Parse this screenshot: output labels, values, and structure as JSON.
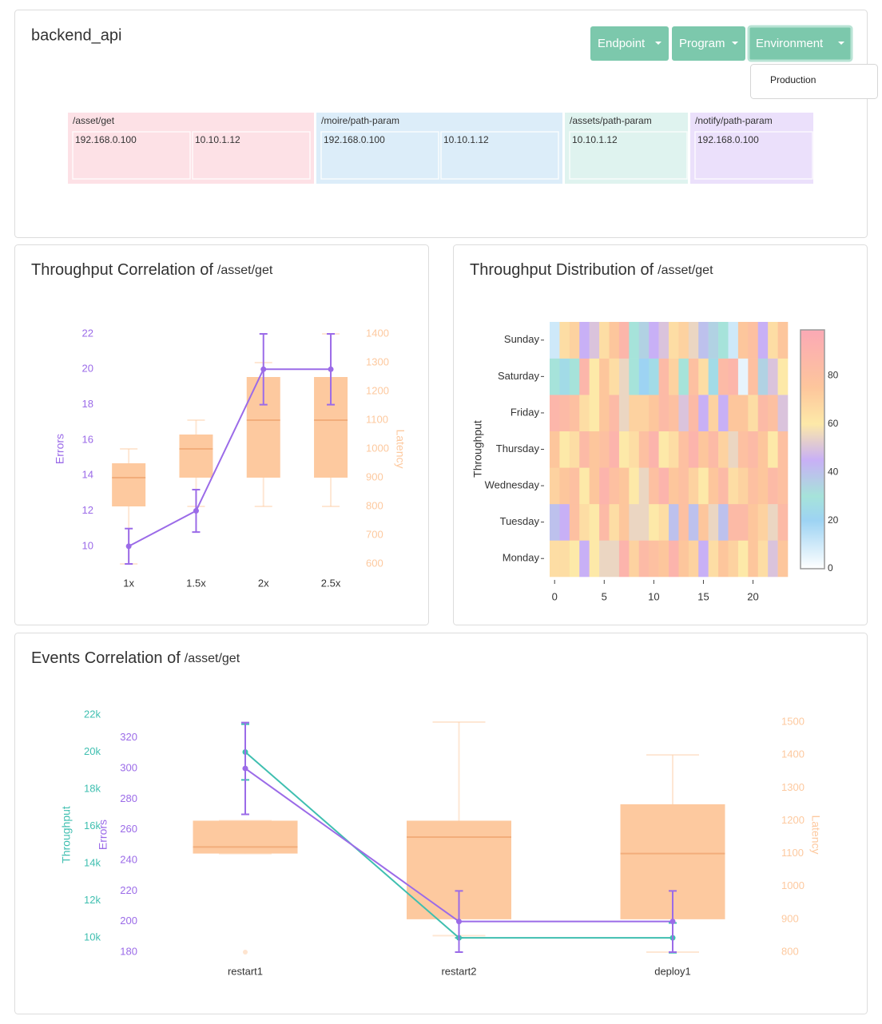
{
  "header": {
    "title": "backend_api",
    "buttons": [
      "Endpoint",
      "Program",
      "Environment"
    ],
    "dropdown": [
      "Production"
    ]
  },
  "treemap": {
    "groups": [
      {
        "label": "/asset/get",
        "color": "#fde1e6",
        "items": [
          "192.168.0.100",
          "10.10.1.12"
        ]
      },
      {
        "label": "/moire/path-param",
        "color": "#dcedf9",
        "items": [
          "192.168.0.100",
          "10.10.1.12"
        ]
      },
      {
        "label": "/assets/path-param",
        "color": "#dff3ef",
        "items": [
          "10.10.1.12"
        ]
      },
      {
        "label": "/notify/path-param",
        "color": "#ebe0fb",
        "items": [
          "192.168.0.100"
        ]
      }
    ]
  },
  "chart_data": [
    {
      "type": "box-line",
      "title": "Throughput Correlation of",
      "subject": "/asset/get",
      "categories": [
        "1x",
        "1.5x",
        "2x",
        "2.5x"
      ],
      "series": [
        {
          "kind": "box",
          "axis": "y2",
          "color": "#fdc99f",
          "min": [
            600,
            800,
            800,
            800
          ],
          "q1": [
            800,
            900,
            900,
            900
          ],
          "median": [
            900,
            1000,
            1100,
            1100
          ],
          "q3": [
            950,
            1050,
            1250,
            1250
          ],
          "max": [
            1000,
            1100,
            1300,
            1400
          ]
        },
        {
          "kind": "line",
          "axis": "y",
          "color": "#9b6be8",
          "values": [
            10,
            12,
            20,
            20
          ],
          "error": [
            1,
            1.2,
            2,
            2
          ]
        }
      ],
      "ylabel": "Errors",
      "ylim": [
        9,
        22
      ],
      "yticks": [
        10,
        12,
        14,
        16,
        18,
        20,
        22
      ],
      "y2label": "Latency",
      "y2lim": [
        600,
        1400
      ],
      "y2ticks": [
        600,
        700,
        800,
        900,
        1000,
        1100,
        1200,
        1300,
        1400
      ]
    },
    {
      "type": "heatmap",
      "title": "Throughput Distribution of",
      "subject": "/asset/get",
      "ylabel": "Throughput",
      "x": [
        0,
        1,
        2,
        3,
        4,
        5,
        6,
        7,
        8,
        9,
        10,
        11,
        12,
        13,
        14,
        15,
        16,
        17,
        18,
        19,
        20,
        21,
        22,
        23
      ],
      "y": [
        "Monday",
        "Tuesday",
        "Wednesday",
        "Thursday",
        "Friday",
        "Saturday",
        "Sunday"
      ],
      "z": [
        [
          65,
          65,
          60,
          45,
          60,
          55,
          55,
          90,
          70,
          85,
          80,
          75,
          90,
          75,
          70,
          45,
          65,
          75,
          70,
          60,
          75,
          65,
          50,
          75
        ],
        [
          40,
          45,
          80,
          65,
          60,
          85,
          65,
          75,
          55,
          55,
          60,
          65,
          40,
          80,
          40,
          75,
          55,
          40,
          85,
          85,
          75,
          70,
          55,
          85
        ],
        [
          70,
          75,
          80,
          60,
          75,
          90,
          80,
          75,
          60,
          55,
          80,
          90,
          75,
          80,
          70,
          60,
          75,
          85,
          65,
          70,
          80,
          75,
          85,
          80
        ],
        [
          75,
          60,
          65,
          85,
          75,
          80,
          90,
          60,
          65,
          80,
          90,
          60,
          65,
          80,
          90,
          75,
          85,
          70,
          55,
          80,
          85,
          75,
          60,
          80
        ],
        [
          88,
          85,
          80,
          65,
          60,
          75,
          85,
          55,
          70,
          70,
          75,
          85,
          80,
          50,
          85,
          45,
          70,
          45,
          75,
          75,
          65,
          85,
          80,
          50
        ],
        [
          30,
          25,
          30,
          88,
          60,
          75,
          65,
          55,
          30,
          20,
          25,
          85,
          70,
          30,
          80,
          65,
          25,
          85,
          88,
          5,
          80,
          35,
          50,
          60
        ],
        [
          10,
          65,
          70,
          45,
          50,
          65,
          75,
          88,
          30,
          35,
          45,
          50,
          65,
          70,
          55,
          40,
          35,
          30,
          10,
          75,
          80,
          45,
          65,
          75
        ]
      ],
      "xlim": [
        -0.5,
        23.5
      ],
      "xticks": [
        0,
        5,
        10,
        15,
        20
      ],
      "zlim": [
        0,
        99
      ],
      "zticks": [
        0,
        20,
        40,
        60,
        80
      ],
      "colorscale": [
        [
          0,
          "#ffffff"
        ],
        [
          20,
          "#9dd3f3"
        ],
        [
          30,
          "#a6e3da"
        ],
        [
          45,
          "#c8b0f6"
        ],
        [
          60,
          "#fde9a8"
        ],
        [
          75,
          "#fdc69c"
        ],
        [
          99,
          "#fba9b5"
        ]
      ]
    },
    {
      "type": "box-line",
      "title": "Events Correlation of",
      "subject": "/asset/get",
      "categories": [
        "restart1",
        "restart2",
        "deploy1"
      ],
      "series": [
        {
          "kind": "box",
          "axis": "y2",
          "color": "#fdc99f",
          "min": [
            1100,
            850,
            800
          ],
          "q1": [
            1100,
            900,
            900
          ],
          "median": [
            1120,
            1150,
            1100
          ],
          "q3": [
            1200,
            1200,
            1250
          ],
          "max": [
            1200,
            1500,
            1400
          ],
          "outliers": [
            [
              800
            ],
            [],
            []
          ]
        },
        {
          "kind": "line",
          "axis": "y3",
          "color": "#3fbfb0",
          "values": [
            20000,
            10000,
            10000
          ],
          "error": [
            1500,
            0,
            800
          ]
        },
        {
          "kind": "line",
          "axis": "y",
          "color": "#9b6be8",
          "values": [
            300,
            200,
            200
          ],
          "error": [
            30,
            20,
            20
          ]
        }
      ],
      "ylabel": "Errors",
      "ylim": [
        180,
        335
      ],
      "yticks": [
        180,
        200,
        220,
        240,
        260,
        280,
        300,
        320
      ],
      "y2label": "Latency",
      "y2lim": [
        800,
        1522
      ],
      "y2ticks": [
        800,
        900,
        1000,
        1100,
        1200,
        1300,
        1400,
        1500
      ],
      "y3label": "Throughput",
      "y3lim": [
        9230,
        22000
      ],
      "y3ticks": [
        {
          "value": 10000,
          "label": "10k"
        },
        {
          "value": 12000,
          "label": "12k"
        },
        {
          "value": 14000,
          "label": "14k"
        },
        {
          "value": 16000,
          "label": "16k"
        },
        {
          "value": 18000,
          "label": "18k"
        },
        {
          "value": 20000,
          "label": "20k"
        },
        {
          "value": 22000,
          "label": "22k"
        }
      ]
    }
  ]
}
